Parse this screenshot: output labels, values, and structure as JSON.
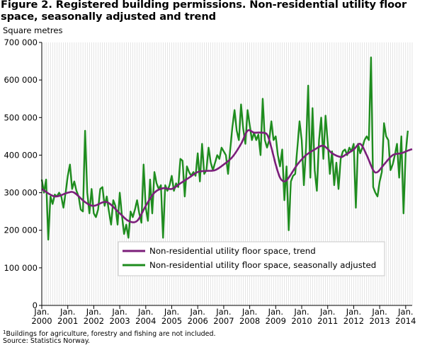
{
  "figure": {
    "title": "Figure 2. Registered building permissions. Non-residential utility floor space, seasonally adjusted and trend",
    "footnote_marker": "1",
    "footnote": "Buildings for agriculture, forestry and fishing are not included.",
    "source": "Source: Statistics Norway."
  },
  "chart_data": {
    "type": "line",
    "title": "Figure 2. Registered building permissions. Non-residential utility floor space, seasonally adjusted and trend",
    "ylabel": "Square metres",
    "xlabel": "",
    "ylim": [
      0,
      700000
    ],
    "xlim": [
      2000.0,
      2014.25
    ],
    "yticks": [
      0,
      100000,
      200000,
      300000,
      400000,
      500000,
      600000,
      700000
    ],
    "ytick_labels": [
      "0",
      "100 000",
      "200 000",
      "300 000",
      "400 000",
      "500 000",
      "600 000",
      "700 000"
    ],
    "xticks": [
      {
        "month": "Jan.",
        "year": "2000"
      },
      {
        "month": "Jan.",
        "year": "2001"
      },
      {
        "month": "Jan.",
        "year": "2002"
      },
      {
        "month": "Jan.",
        "year": "2003"
      },
      {
        "month": "Jan.",
        "year": "2004"
      },
      {
        "month": "Jan.",
        "year": "2005"
      },
      {
        "month": "Jan.",
        "year": "2006"
      },
      {
        "month": "Jan.",
        "year": "2007"
      },
      {
        "month": "Jan.",
        "year": "2008"
      },
      {
        "month": "Jan.",
        "year": "2009"
      },
      {
        "month": "Jan.",
        "year": "2010"
      },
      {
        "month": "Jan.",
        "year": "2011"
      },
      {
        "month": "Jan.",
        "year": "2012"
      },
      {
        "month": "Jan.",
        "year": "2013"
      },
      {
        "month": "Jan.",
        "year": "2014"
      }
    ],
    "grid": {
      "vertical_monthly": true,
      "horizontal": false
    },
    "legend_position": "lower-center",
    "start": "2000-01",
    "frequency": "monthly",
    "series": [
      {
        "name": "Non-residential utility floor space, trend",
        "color": "#7b1e7a",
        "keypoints": [
          [
            0,
            310000
          ],
          [
            6,
            290000
          ],
          [
            12,
            300000
          ],
          [
            15,
            300000
          ],
          [
            20,
            275000
          ],
          [
            24,
            265000
          ],
          [
            30,
            275000
          ],
          [
            36,
            245000
          ],
          [
            40,
            225000
          ],
          [
            44,
            225000
          ],
          [
            48,
            265000
          ],
          [
            52,
            300000
          ],
          [
            56,
            312000
          ],
          [
            60,
            310000
          ],
          [
            64,
            325000
          ],
          [
            68,
            340000
          ],
          [
            72,
            355000
          ],
          [
            76,
            358000
          ],
          [
            80,
            360000
          ],
          [
            84,
            375000
          ],
          [
            88,
            395000
          ],
          [
            92,
            430000
          ],
          [
            95,
            465000
          ],
          [
            98,
            460000
          ],
          [
            101,
            460000
          ],
          [
            104,
            455000
          ],
          [
            106,
            420000
          ],
          [
            108,
            375000
          ],
          [
            110,
            340000
          ],
          [
            112,
            330000
          ],
          [
            114,
            340000
          ],
          [
            118,
            375000
          ],
          [
            122,
            400000
          ],
          [
            126,
            415000
          ],
          [
            130,
            425000
          ],
          [
            134,
            405000
          ],
          [
            138,
            395000
          ],
          [
            140,
            400000
          ],
          [
            144,
            415000
          ],
          [
            147,
            430000
          ],
          [
            150,
            400000
          ],
          [
            153,
            360000
          ],
          [
            155,
            355000
          ],
          [
            158,
            375000
          ],
          [
            162,
            400000
          ],
          [
            166,
            405000
          ],
          [
            169,
            412000
          ],
          [
            171,
            416000
          ]
        ]
      },
      {
        "name": "Non-residential utility floor space, seasonally adjusted",
        "color": "#1e8c1e",
        "values": [
          335000,
          300000,
          335000,
          175000,
          290000,
          270000,
          295000,
          290000,
          300000,
          290000,
          260000,
          300000,
          345000,
          375000,
          310000,
          330000,
          305000,
          290000,
          255000,
          250000,
          465000,
          300000,
          245000,
          310000,
          245000,
          235000,
          255000,
          310000,
          315000,
          265000,
          290000,
          250000,
          215000,
          280000,
          265000,
          215000,
          300000,
          240000,
          190000,
          215000,
          180000,
          250000,
          235000,
          255000,
          280000,
          245000,
          220000,
          375000,
          260000,
          225000,
          335000,
          245000,
          355000,
          325000,
          310000,
          320000,
          180000,
          320000,
          305000,
          320000,
          345000,
          305000,
          325000,
          315000,
          390000,
          385000,
          290000,
          370000,
          355000,
          345000,
          355000,
          345000,
          405000,
          330000,
          430000,
          350000,
          360000,
          420000,
          380000,
          360000,
          380000,
          400000,
          390000,
          420000,
          410000,
          400000,
          350000,
          415000,
          475000,
          520000,
          465000,
          440000,
          535000,
          470000,
          430000,
          520000,
          480000,
          440000,
          460000,
          440000,
          455000,
          400000,
          550000,
          440000,
          420000,
          440000,
          490000,
          440000,
          450000,
          400000,
          370000,
          415000,
          280000,
          370000,
          200000,
          330000,
          345000,
          350000,
          420000,
          490000,
          440000,
          320000,
          420000,
          585000,
          340000,
          525000,
          360000,
          305000,
          440000,
          500000,
          390000,
          505000,
          435000,
          350000,
          410000,
          320000,
          380000,
          310000,
          390000,
          410000,
          415000,
          400000,
          420000,
          410000,
          430000,
          260000,
          430000,
          405000,
          420000,
          440000,
          450000,
          440000,
          660000,
          315000,
          300000,
          290000,
          330000,
          355000,
          485000,
          450000,
          440000,
          360000,
          375000,
          400000,
          430000,
          340000,
          450000,
          245000,
          405000,
          465000
        ]
      }
    ]
  }
}
